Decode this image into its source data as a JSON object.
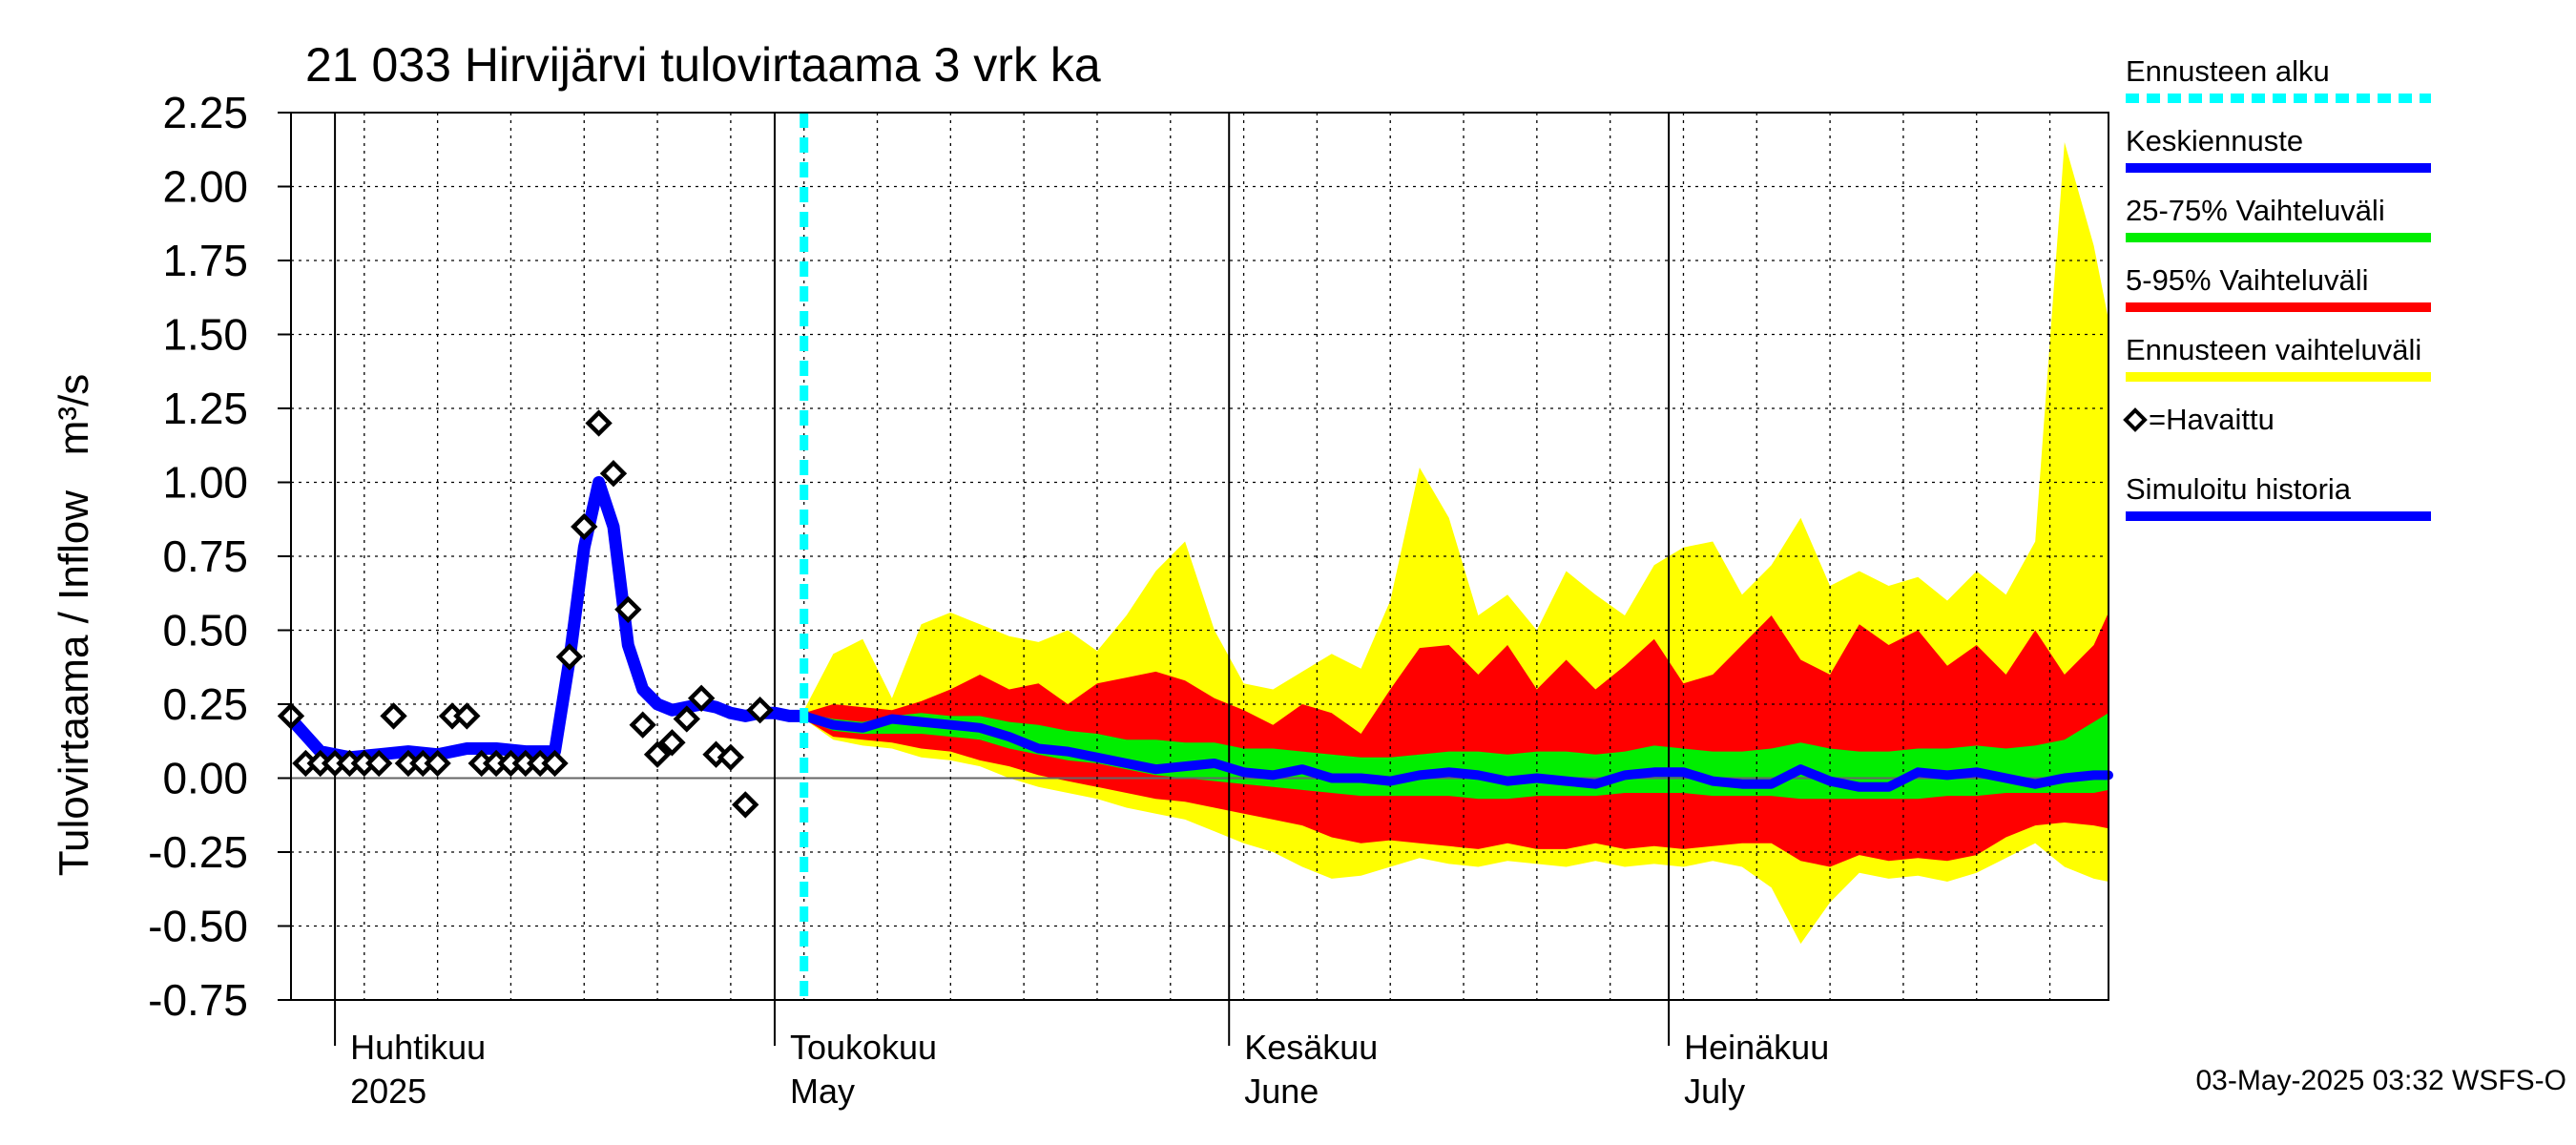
{
  "chart_data": {
    "type": "area",
    "title": "21 033 Hirvijärvi tulovirtaama 3 vrk ka",
    "ylabel": "Tulovirtaama / Inflow   m³/s",
    "ylim": [
      -0.75,
      2.25
    ],
    "xlim": [
      "2025-03-29",
      "2025-07-31"
    ],
    "grid": true,
    "legend_position": "right",
    "footer": "03-May-2025 03:32 WSFS-O",
    "y_ticks": [
      "2.25",
      "2.00",
      "1.75",
      "1.50",
      "1.25",
      "1.00",
      "0.75",
      "0.50",
      "0.25",
      "0.00",
      "-0.25",
      "-0.50",
      "-0.75"
    ],
    "month_labels": [
      {
        "line1": "Huhtikuu",
        "line2": "2025",
        "date": "2025-04-01"
      },
      {
        "line1": "Toukokuu",
        "line2": "May",
        "date": "2025-05-01"
      },
      {
        "line1": "Kesäkuu",
        "line2": "June",
        "date": "2025-06-01"
      },
      {
        "line1": "Heinäkuu",
        "line2": "July",
        "date": "2025-07-01"
      }
    ],
    "forecast_start": "2025-05-03",
    "legend": [
      {
        "label": "Ennusteen alku",
        "color": "#00ffff",
        "style": "dashed"
      },
      {
        "label": "Keskiennuste",
        "color": "#0000ff",
        "style": "line"
      },
      {
        "label": "25-75% Vaihteluväli",
        "color": "#00ee00",
        "style": "line"
      },
      {
        "label": "5-95% Vaihteluväli",
        "color": "#ff0000",
        "style": "line"
      },
      {
        "label": "Ennusteen vaihteluväli",
        "color": "#ffff00",
        "style": "line"
      },
      {
        "label": "=Havaittu",
        "color": "#000000",
        "style": "diamond"
      },
      {
        "label": "Simuloitu historia",
        "color": "#0000ff",
        "style": "line"
      }
    ],
    "colors": {
      "envelope": "#ffff00",
      "p5_95": "#ff0000",
      "p25_75": "#00ee00",
      "median": "#0000ff",
      "simulated": "#0000ff",
      "forecast_start": "#00ffff",
      "observed": "#000000"
    },
    "observed": [
      {
        "date": "2025-03-29",
        "value": 0.21
      },
      {
        "date": "2025-03-30",
        "value": 0.05
      },
      {
        "date": "2025-03-31",
        "value": 0.05
      },
      {
        "date": "2025-04-01",
        "value": 0.05
      },
      {
        "date": "2025-04-02",
        "value": 0.05
      },
      {
        "date": "2025-04-03",
        "value": 0.05
      },
      {
        "date": "2025-04-04",
        "value": 0.05
      },
      {
        "date": "2025-04-05",
        "value": 0.21
      },
      {
        "date": "2025-04-06",
        "value": 0.05
      },
      {
        "date": "2025-04-07",
        "value": 0.05
      },
      {
        "date": "2025-04-08",
        "value": 0.05
      },
      {
        "date": "2025-04-09",
        "value": 0.21
      },
      {
        "date": "2025-04-10",
        "value": 0.21
      },
      {
        "date": "2025-04-11",
        "value": 0.05
      },
      {
        "date": "2025-04-12",
        "value": 0.05
      },
      {
        "date": "2025-04-13",
        "value": 0.05
      },
      {
        "date": "2025-04-14",
        "value": 0.05
      },
      {
        "date": "2025-04-15",
        "value": 0.05
      },
      {
        "date": "2025-04-16",
        "value": 0.05
      },
      {
        "date": "2025-04-17",
        "value": 0.41
      },
      {
        "date": "2025-04-18",
        "value": 0.85
      },
      {
        "date": "2025-04-19",
        "value": 1.2
      },
      {
        "date": "2025-04-20",
        "value": 1.03
      },
      {
        "date": "2025-04-21",
        "value": 0.57
      },
      {
        "date": "2025-04-22",
        "value": 0.18
      },
      {
        "date": "2025-04-23",
        "value": 0.08
      },
      {
        "date": "2025-04-24",
        "value": 0.12
      },
      {
        "date": "2025-04-25",
        "value": 0.2
      },
      {
        "date": "2025-04-26",
        "value": 0.27
      },
      {
        "date": "2025-04-27",
        "value": 0.08
      },
      {
        "date": "2025-04-28",
        "value": 0.07
      },
      {
        "date": "2025-04-29",
        "value": -0.09
      },
      {
        "date": "2025-04-30",
        "value": 0.23
      }
    ],
    "simulated_history": [
      {
        "date": "2025-03-29",
        "value": 0.2
      },
      {
        "date": "2025-03-31",
        "value": 0.09
      },
      {
        "date": "2025-04-02",
        "value": 0.07
      },
      {
        "date": "2025-04-04",
        "value": 0.08
      },
      {
        "date": "2025-04-06",
        "value": 0.09
      },
      {
        "date": "2025-04-08",
        "value": 0.08
      },
      {
        "date": "2025-04-10",
        "value": 0.1
      },
      {
        "date": "2025-04-12",
        "value": 0.1
      },
      {
        "date": "2025-04-14",
        "value": 0.09
      },
      {
        "date": "2025-04-16",
        "value": 0.09
      },
      {
        "date": "2025-04-17",
        "value": 0.4
      },
      {
        "date": "2025-04-18",
        "value": 0.78
      },
      {
        "date": "2025-04-19",
        "value": 1.0
      },
      {
        "date": "2025-04-20",
        "value": 0.85
      },
      {
        "date": "2025-04-21",
        "value": 0.45
      },
      {
        "date": "2025-04-22",
        "value": 0.3
      },
      {
        "date": "2025-04-23",
        "value": 0.25
      },
      {
        "date": "2025-04-24",
        "value": 0.23
      },
      {
        "date": "2025-04-25",
        "value": 0.24
      },
      {
        "date": "2025-04-26",
        "value": 0.25
      },
      {
        "date": "2025-04-27",
        "value": 0.24
      },
      {
        "date": "2025-04-28",
        "value": 0.22
      },
      {
        "date": "2025-04-29",
        "value": 0.21
      },
      {
        "date": "2025-04-30",
        "value": 0.22
      },
      {
        "date": "2025-05-01",
        "value": 0.22
      },
      {
        "date": "2025-05-02",
        "value": 0.21
      },
      {
        "date": "2025-05-03",
        "value": 0.21
      }
    ],
    "forecast": [
      {
        "date": "2025-05-03",
        "min": 0.2,
        "p5": 0.2,
        "p25": 0.2,
        "median": 0.21,
        "p75": 0.22,
        "p95": 0.22,
        "max": 0.23
      },
      {
        "date": "2025-05-05",
        "min": 0.13,
        "p5": 0.14,
        "p25": 0.16,
        "median": 0.18,
        "p75": 0.2,
        "p95": 0.25,
        "max": 0.42
      },
      {
        "date": "2025-05-07",
        "min": 0.11,
        "p5": 0.13,
        "p25": 0.15,
        "median": 0.17,
        "p75": 0.19,
        "p95": 0.24,
        "max": 0.47
      },
      {
        "date": "2025-05-09",
        "min": 0.1,
        "p5": 0.12,
        "p25": 0.15,
        "median": 0.2,
        "p75": 0.21,
        "p95": 0.23,
        "max": 0.27
      },
      {
        "date": "2025-05-11",
        "min": 0.07,
        "p5": 0.1,
        "p25": 0.15,
        "median": 0.19,
        "p75": 0.22,
        "p95": 0.26,
        "max": 0.52
      },
      {
        "date": "2025-05-13",
        "min": 0.06,
        "p5": 0.09,
        "p25": 0.14,
        "median": 0.18,
        "p75": 0.21,
        "p95": 0.3,
        "max": 0.56
      },
      {
        "date": "2025-05-15",
        "min": 0.04,
        "p5": 0.06,
        "p25": 0.13,
        "median": 0.17,
        "p75": 0.21,
        "p95": 0.35,
        "max": 0.52
      },
      {
        "date": "2025-05-17",
        "min": 0.0,
        "p5": 0.04,
        "p25": 0.1,
        "median": 0.14,
        "p75": 0.19,
        "p95": 0.3,
        "max": 0.48
      },
      {
        "date": "2025-05-19",
        "min": -0.03,
        "p5": 0.01,
        "p25": 0.08,
        "median": 0.1,
        "p75": 0.18,
        "p95": 0.32,
        "max": 0.46
      },
      {
        "date": "2025-05-21",
        "min": -0.05,
        "p5": -0.01,
        "p25": 0.06,
        "median": 0.09,
        "p75": 0.16,
        "p95": 0.25,
        "max": 0.5
      },
      {
        "date": "2025-05-23",
        "min": -0.07,
        "p5": -0.03,
        "p25": 0.05,
        "median": 0.07,
        "p75": 0.15,
        "p95": 0.32,
        "max": 0.43
      },
      {
        "date": "2025-05-25",
        "min": -0.1,
        "p5": -0.05,
        "p25": 0.03,
        "median": 0.05,
        "p75": 0.13,
        "p95": 0.34,
        "max": 0.55
      },
      {
        "date": "2025-05-27",
        "min": -0.12,
        "p5": -0.07,
        "p25": 0.01,
        "median": 0.03,
        "p75": 0.13,
        "p95": 0.36,
        "max": 0.7
      },
      {
        "date": "2025-05-29",
        "min": -0.14,
        "p5": -0.08,
        "p25": 0.0,
        "median": 0.04,
        "p75": 0.12,
        "p95": 0.33,
        "max": 0.8
      },
      {
        "date": "2025-05-31",
        "min": -0.18,
        "p5": -0.1,
        "p25": -0.01,
        "median": 0.05,
        "p75": 0.12,
        "p95": 0.27,
        "max": 0.5
      },
      {
        "date": "2025-06-02",
        "min": -0.22,
        "p5": -0.12,
        "p25": -0.02,
        "median": 0.02,
        "p75": 0.1,
        "p95": 0.23,
        "max": 0.32
      },
      {
        "date": "2025-06-04",
        "min": -0.25,
        "p5": -0.14,
        "p25": -0.03,
        "median": 0.01,
        "p75": 0.1,
        "p95": 0.18,
        "max": 0.3
      },
      {
        "date": "2025-06-06",
        "min": -0.3,
        "p5": -0.16,
        "p25": -0.04,
        "median": 0.03,
        "p75": 0.09,
        "p95": 0.25,
        "max": 0.36
      },
      {
        "date": "2025-06-08",
        "min": -0.34,
        "p5": -0.2,
        "p25": -0.05,
        "median": 0.0,
        "p75": 0.08,
        "p95": 0.22,
        "max": 0.42
      },
      {
        "date": "2025-06-10",
        "min": -0.33,
        "p5": -0.22,
        "p25": -0.06,
        "median": 0.0,
        "p75": 0.07,
        "p95": 0.15,
        "max": 0.37
      },
      {
        "date": "2025-06-12",
        "min": -0.3,
        "p5": -0.21,
        "p25": -0.06,
        "median": -0.01,
        "p75": 0.07,
        "p95": 0.3,
        "max": 0.6
      },
      {
        "date": "2025-06-14",
        "min": -0.27,
        "p5": -0.22,
        "p25": -0.06,
        "median": 0.01,
        "p75": 0.08,
        "p95": 0.44,
        "max": 1.05
      },
      {
        "date": "2025-06-16",
        "min": -0.29,
        "p5": -0.23,
        "p25": -0.06,
        "median": 0.02,
        "p75": 0.09,
        "p95": 0.45,
        "max": 0.88
      },
      {
        "date": "2025-06-18",
        "min": -0.3,
        "p5": -0.24,
        "p25": -0.07,
        "median": 0.01,
        "p75": 0.09,
        "p95": 0.35,
        "max": 0.55
      },
      {
        "date": "2025-06-20",
        "min": -0.28,
        "p5": -0.22,
        "p25": -0.07,
        "median": -0.01,
        "p75": 0.08,
        "p95": 0.45,
        "max": 0.62
      },
      {
        "date": "2025-06-22",
        "min": -0.29,
        "p5": -0.24,
        "p25": -0.06,
        "median": 0.0,
        "p75": 0.09,
        "p95": 0.3,
        "max": 0.5
      },
      {
        "date": "2025-06-24",
        "min": -0.3,
        "p5": -0.24,
        "p25": -0.06,
        "median": -0.01,
        "p75": 0.09,
        "p95": 0.4,
        "max": 0.7
      },
      {
        "date": "2025-06-26",
        "min": -0.28,
        "p5": -0.22,
        "p25": -0.06,
        "median": -0.02,
        "p75": 0.08,
        "p95": 0.3,
        "max": 0.62
      },
      {
        "date": "2025-06-28",
        "min": -0.3,
        "p5": -0.24,
        "p25": -0.05,
        "median": 0.01,
        "p75": 0.09,
        "p95": 0.38,
        "max": 0.55
      },
      {
        "date": "2025-06-30",
        "min": -0.29,
        "p5": -0.23,
        "p25": -0.05,
        "median": 0.02,
        "p75": 0.11,
        "p95": 0.47,
        "max": 0.72
      },
      {
        "date": "2025-07-02",
        "min": -0.3,
        "p5": -0.24,
        "p25": -0.05,
        "median": 0.02,
        "p75": 0.1,
        "p95": 0.32,
        "max": 0.78
      },
      {
        "date": "2025-07-04",
        "min": -0.28,
        "p5": -0.23,
        "p25": -0.06,
        "median": -0.01,
        "p75": 0.09,
        "p95": 0.35,
        "max": 0.8
      },
      {
        "date": "2025-07-06",
        "min": -0.3,
        "p5": -0.22,
        "p25": -0.06,
        "median": -0.02,
        "p75": 0.09,
        "p95": 0.45,
        "max": 0.62
      },
      {
        "date": "2025-07-08",
        "min": -0.37,
        "p5": -0.22,
        "p25": -0.06,
        "median": -0.02,
        "p75": 0.1,
        "p95": 0.55,
        "max": 0.72
      },
      {
        "date": "2025-07-10",
        "min": -0.56,
        "p5": -0.28,
        "p25": -0.07,
        "median": 0.03,
        "p75": 0.12,
        "p95": 0.4,
        "max": 0.88
      },
      {
        "date": "2025-07-12",
        "min": -0.42,
        "p5": -0.3,
        "p25": -0.07,
        "median": -0.01,
        "p75": 0.1,
        "p95": 0.35,
        "max": 0.65
      },
      {
        "date": "2025-07-14",
        "min": -0.32,
        "p5": -0.26,
        "p25": -0.07,
        "median": -0.03,
        "p75": 0.09,
        "p95": 0.52,
        "max": 0.7
      },
      {
        "date": "2025-07-16",
        "min": -0.34,
        "p5": -0.28,
        "p25": -0.07,
        "median": -0.03,
        "p75": 0.09,
        "p95": 0.45,
        "max": 0.65
      },
      {
        "date": "2025-07-18",
        "min": -0.33,
        "p5": -0.27,
        "p25": -0.07,
        "median": 0.02,
        "p75": 0.1,
        "p95": 0.5,
        "max": 0.68
      },
      {
        "date": "2025-07-20",
        "min": -0.35,
        "p5": -0.28,
        "p25": -0.06,
        "median": 0.01,
        "p75": 0.1,
        "p95": 0.38,
        "max": 0.6
      },
      {
        "date": "2025-07-22",
        "min": -0.32,
        "p5": -0.26,
        "p25": -0.06,
        "median": 0.02,
        "p75": 0.11,
        "p95": 0.45,
        "max": 0.7
      },
      {
        "date": "2025-07-24",
        "min": -0.27,
        "p5": -0.2,
        "p25": -0.05,
        "median": 0.0,
        "p75": 0.1,
        "p95": 0.35,
        "max": 0.62
      },
      {
        "date": "2025-07-26",
        "min": -0.22,
        "p5": -0.16,
        "p25": -0.05,
        "median": -0.02,
        "p75": 0.11,
        "p95": 0.5,
        "max": 0.8
      },
      {
        "date": "2025-07-28",
        "min": -0.3,
        "p5": -0.15,
        "p25": -0.05,
        "median": 0.0,
        "p75": 0.13,
        "p95": 0.35,
        "max": 2.15
      },
      {
        "date": "2025-07-30",
        "min": -0.34,
        "p5": -0.16,
        "p25": -0.05,
        "median": 0.01,
        "p75": 0.19,
        "p95": 0.45,
        "max": 1.8
      },
      {
        "date": "2025-07-31",
        "min": -0.35,
        "p5": -0.17,
        "p25": -0.04,
        "median": 0.01,
        "p75": 0.22,
        "p95": 0.56,
        "max": 1.55
      }
    ]
  }
}
